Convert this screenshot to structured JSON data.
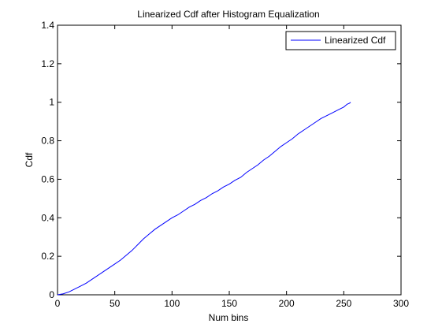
{
  "chart_data": {
    "type": "line",
    "title": "Linearized Cdf after Histogram Equalization",
    "xlabel": "Num bins",
    "ylabel": "Cdf",
    "xlim": [
      0,
      300
    ],
    "ylim": [
      0,
      1.4
    ],
    "xticks": [
      0,
      50,
      100,
      150,
      200,
      250,
      300
    ],
    "xtick_labels": [
      "0",
      "50",
      "100",
      "150",
      "200",
      "250",
      "300"
    ],
    "yticks": [
      0,
      0.2,
      0.4,
      0.6,
      0.8,
      1.0,
      1.2,
      1.4
    ],
    "ytick_labels": [
      "0",
      "0.2",
      "0.4",
      "0.6",
      "0.8",
      "1",
      "1.2",
      "1.4"
    ],
    "grid": false,
    "legend_position": "top-right",
    "series": [
      {
        "name": "Linearized Cdf",
        "color": "#0000ff",
        "x": [
          0,
          5,
          10,
          15,
          20,
          25,
          30,
          35,
          40,
          45,
          50,
          55,
          60,
          65,
          70,
          75,
          80,
          85,
          90,
          95,
          100,
          105,
          110,
          115,
          120,
          125,
          130,
          135,
          140,
          145,
          150,
          155,
          160,
          165,
          170,
          175,
          180,
          185,
          190,
          195,
          200,
          205,
          210,
          215,
          220,
          225,
          230,
          235,
          240,
          245,
          250,
          253,
          255,
          256
        ],
        "y": [
          0,
          0.005,
          0.015,
          0.03,
          0.045,
          0.06,
          0.08,
          0.1,
          0.12,
          0.14,
          0.16,
          0.18,
          0.205,
          0.23,
          0.26,
          0.29,
          0.315,
          0.34,
          0.36,
          0.38,
          0.4,
          0.415,
          0.435,
          0.455,
          0.47,
          0.49,
          0.505,
          0.525,
          0.54,
          0.56,
          0.575,
          0.595,
          0.61,
          0.635,
          0.655,
          0.675,
          0.7,
          0.72,
          0.745,
          0.77,
          0.79,
          0.81,
          0.835,
          0.855,
          0.875,
          0.895,
          0.915,
          0.93,
          0.945,
          0.96,
          0.975,
          0.99,
          0.995,
          1.0
        ]
      }
    ]
  }
}
